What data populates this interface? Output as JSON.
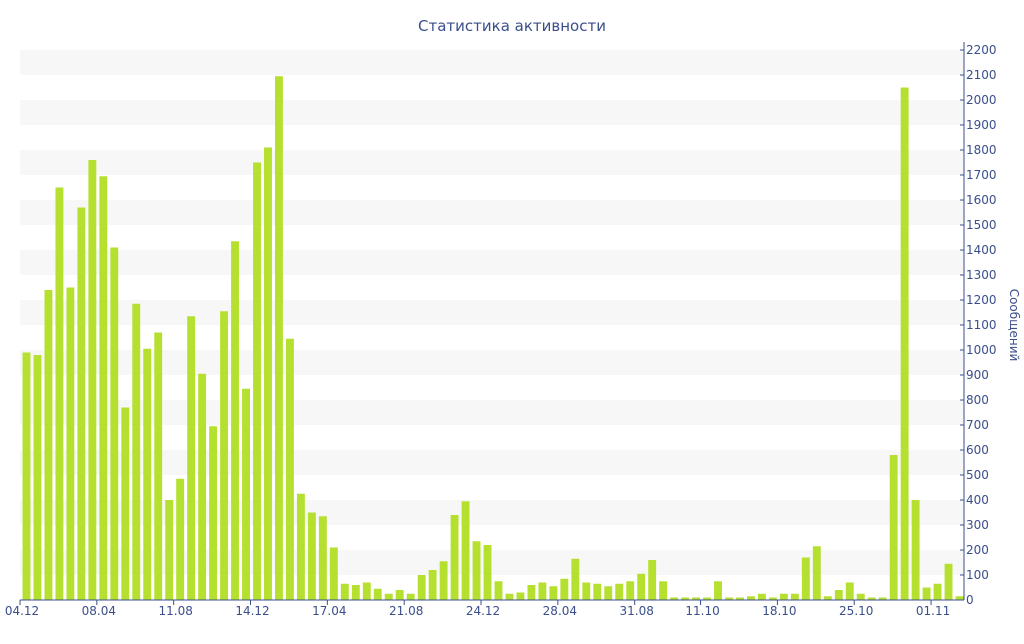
{
  "colors": {
    "bar": "#b5e030",
    "band": "#f7f7f7",
    "axis": "#3a4e8c",
    "text": "#3a4e8c",
    "background": "#ffffff"
  },
  "chart_data": {
    "type": "bar",
    "title": "Статистика активности",
    "xlabel": "",
    "ylabel": "Сообщений",
    "y_axis_side": "right",
    "ylim": [
      0,
      2200
    ],
    "ytick_step": 100,
    "grid": "alternating horizontal bands",
    "legend": "none",
    "x_tick_labels": [
      {
        "label": "04.12",
        "index": 0
      },
      {
        "label": "08.04",
        "index": 7
      },
      {
        "label": "11.08",
        "index": 14
      },
      {
        "label": "14.12",
        "index": 21
      },
      {
        "label": "17.04",
        "index": 28
      },
      {
        "label": "21.08",
        "index": 35
      },
      {
        "label": "24.12",
        "index": 42
      },
      {
        "label": "28.04",
        "index": 49
      },
      {
        "label": "31.08",
        "index": 56
      },
      {
        "label": "11.10",
        "index": 62
      },
      {
        "label": "18.10",
        "index": 69
      },
      {
        "label": "25.10",
        "index": 76
      },
      {
        "label": "01.11",
        "index": 83
      }
    ],
    "values": [
      990,
      980,
      1240,
      1650,
      1250,
      1570,
      1760,
      1695,
      1410,
      770,
      1185,
      1005,
      1070,
      400,
      485,
      1135,
      905,
      695,
      1155,
      1435,
      845,
      1750,
      1810,
      2095,
      1045,
      425,
      350,
      335,
      210,
      65,
      60,
      70,
      45,
      25,
      40,
      25,
      100,
      120,
      155,
      340,
      395,
      235,
      220,
      75,
      25,
      30,
      60,
      70,
      55,
      85,
      165,
      70,
      65,
      55,
      65,
      75,
      105,
      160,
      75,
      10,
      10,
      10,
      10,
      75,
      10,
      10,
      15,
      25,
      10,
      25,
      25,
      170,
      215,
      15,
      40,
      70,
      25,
      10,
      10,
      580,
      2050,
      400,
      50,
      65,
      145,
      15
    ]
  }
}
